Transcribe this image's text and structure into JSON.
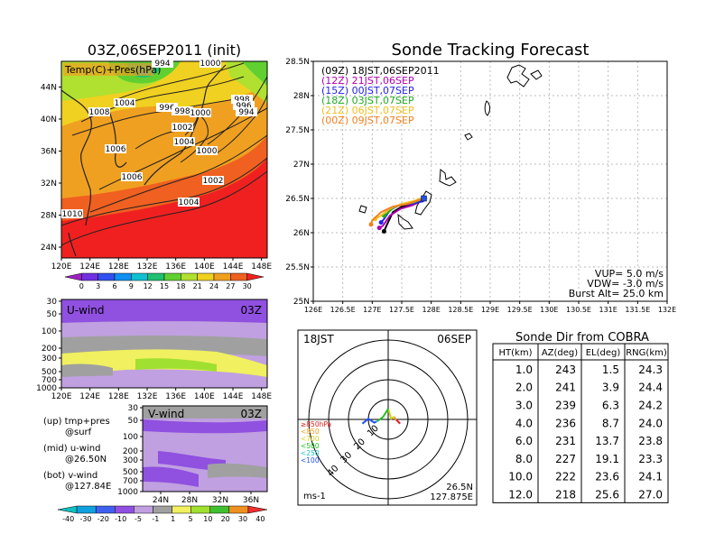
{
  "chart_data": [
    {
      "type": "heatmap",
      "panel": "surface",
      "title": "03Z,06SEP2011 (init)",
      "label": "Temp(C)+Pres(hPa)",
      "xticks": [
        "120E",
        "124E",
        "128E",
        "132E",
        "136E",
        "140E",
        "144E",
        "148E"
      ],
      "yticks": [
        "24N",
        "28N",
        "32N",
        "36N",
        "40N",
        "44N"
      ],
      "pressure_labels": [
        "994",
        "1000",
        "1004",
        "1008",
        "996",
        "998",
        "1000",
        "998",
        "996",
        "994",
        "1002",
        "1004",
        "1000",
        "1006",
        "1006",
        "1002",
        "1004",
        "1010"
      ],
      "colorbar": [
        "0",
        "3",
        "6",
        "9",
        "12",
        "15",
        "18",
        "21",
        "24",
        "27",
        "30"
      ]
    },
    {
      "type": "heatmap",
      "panel": "u-wind",
      "label": "U-wind",
      "time": "03Z",
      "xticks": [
        "120E",
        "124E",
        "128E",
        "132E",
        "136E",
        "140E",
        "144E",
        "148E"
      ],
      "yticks": [
        "30",
        "50",
        "100",
        "200",
        "300",
        "500",
        "700",
        "1000"
      ]
    },
    {
      "type": "heatmap",
      "panel": "v-wind",
      "label": "V-wind",
      "time": "03Z",
      "xticks": [
        "24N",
        "28N",
        "32N",
        "36N"
      ],
      "yticks": [
        "30",
        "50",
        "100",
        "200",
        "300",
        "500",
        "700",
        "1000"
      ],
      "colorbar": [
        "-40",
        "-30",
        "-20",
        "-10",
        "-5",
        "-1",
        "1",
        "5",
        "10",
        "20",
        "30",
        "40"
      ]
    },
    {
      "type": "line",
      "panel": "tracking",
      "title": "Sonde Tracking Forecast",
      "xlim": [
        126,
        132
      ],
      "ylim": [
        25,
        28.5
      ],
      "xticks": [
        "126E",
        "126.5E",
        "127E",
        "127.5E",
        "128E",
        "128.5E",
        "129E",
        "129.5E",
        "130E",
        "130.5E",
        "131E",
        "131.5E",
        "132E"
      ],
      "yticks": [
        "25N",
        "25.5N",
        "26N",
        "26.5N",
        "27N",
        "27.5N",
        "28N",
        "28.5N"
      ],
      "start": [
        127.875,
        26.5
      ],
      "series": [
        {
          "name": "(09Z)  18JST,06SEP2011",
          "color": "#000000",
          "points": [
            [
              127.875,
              26.5
            ],
            [
              127.7,
              26.42
            ],
            [
              127.5,
              26.38
            ],
            [
              127.35,
              26.3
            ],
            [
              127.25,
              26.12
            ],
            [
              127.2,
              26.02
            ]
          ]
        },
        {
          "name": "(12Z)  21JST,06SEP",
          "color": "#b000b0",
          "points": [
            [
              127.875,
              26.48
            ],
            [
              127.68,
              26.4
            ],
            [
              127.48,
              26.35
            ],
            [
              127.3,
              26.25
            ],
            [
              127.18,
              26.1
            ],
            [
              127.12,
              26.07
            ]
          ]
        },
        {
          "name": "(15Z)  00JST,07SEP",
          "color": "#2222ee",
          "points": [
            [
              127.875,
              26.46
            ],
            [
              127.65,
              26.42
            ],
            [
              127.45,
              26.4
            ],
            [
              127.3,
              26.33
            ],
            [
              127.2,
              26.2
            ],
            [
              127.15,
              26.15
            ]
          ]
        },
        {
          "name": "(18Z)  03JST,07SEP",
          "color": "#22aa22",
          "points": [
            [
              127.875,
              26.5
            ],
            [
              127.7,
              26.44
            ],
            [
              127.5,
              26.42
            ],
            [
              127.35,
              26.36
            ],
            [
              127.25,
              26.28
            ],
            [
              127.2,
              26.25
            ]
          ]
        },
        {
          "name": "(21Z)  06JST,07SEP",
          "color": "#f0c020",
          "points": [
            [
              127.875,
              26.52
            ],
            [
              127.7,
              26.46
            ],
            [
              127.5,
              26.42
            ],
            [
              127.3,
              26.35
            ],
            [
              127.15,
              26.25
            ],
            [
              127.05,
              26.2
            ]
          ]
        },
        {
          "name": "(00Z)  09JST,07SEP",
          "color": "#f08020",
          "points": [
            [
              127.875,
              26.5
            ],
            [
              127.6,
              26.42
            ],
            [
              127.35,
              26.38
            ],
            [
              127.15,
              26.3
            ],
            [
              127.0,
              26.18
            ],
            [
              126.98,
              26.12
            ]
          ]
        }
      ],
      "notes": [
        "VUP=  5.0  m/s",
        "VDW= -3.0  m/s",
        "Burst Alt=  25.0  km"
      ]
    },
    {
      "type": "line",
      "panel": "polar",
      "time_label": "18JST",
      "date_label": "06SEP",
      "ring_labels": [
        "10",
        "20",
        "30",
        "40"
      ],
      "unit": "ms-1",
      "location": [
        "26.5N",
        "127.875E"
      ],
      "legend": [
        {
          "label": "≥850hPa",
          "color": "#e02020"
        },
        {
          "label": "<850",
          "color": "#f0a020"
        },
        {
          "label": "<700",
          "color": "#d0d020"
        },
        {
          "label": "<500",
          "color": "#20c020"
        },
        {
          "label": "<250",
          "color": "#20c0c0"
        },
        {
          "label": "<100",
          "color": "#2050f0"
        }
      ],
      "series": [
        {
          "color": "#e02020",
          "points": [
            [
              12,
              3
            ],
            [
              10,
              5
            ],
            [
              8,
              7
            ]
          ]
        },
        {
          "color": "#f0a020",
          "points": [
            [
              8,
              7
            ],
            [
              6,
              10
            ]
          ]
        },
        {
          "color": "#d0d020",
          "points": [
            [
              6,
              10
            ],
            [
              3,
              8
            ],
            [
              0,
              18
            ]
          ]
        },
        {
          "color": "#20c020",
          "points": [
            [
              0,
              18
            ],
            [
              -5,
              10
            ],
            [
              -10,
              6
            ]
          ]
        },
        {
          "color": "#20c0c0",
          "points": [
            [
              -10,
              6
            ],
            [
              -12,
              5
            ]
          ]
        },
        {
          "color": "#2050f0",
          "points": [
            [
              -12,
              5
            ],
            [
              -14,
              4
            ],
            [
              -20,
              8
            ],
            [
              -26,
              3
            ]
          ]
        }
      ]
    },
    {
      "type": "table",
      "panel": "sonde-dir",
      "title": "Sonde Dir from COBRA",
      "columns": [
        "HT(km)",
        "AZ(deg)",
        "EL(deg)",
        "RNG(km)"
      ],
      "rows": [
        [
          "1.0",
          "243",
          "1.5",
          "24.3"
        ],
        [
          "2.0",
          "241",
          "3.9",
          "24.4"
        ],
        [
          "3.0",
          "239",
          "6.3",
          "24.2"
        ],
        [
          "4.0",
          "236",
          "8.7",
          "24.0"
        ],
        [
          "6.0",
          "231",
          "13.7",
          "23.8"
        ],
        [
          "8.0",
          "227",
          "19.1",
          "23.3"
        ],
        [
          "10.0",
          "222",
          "23.6",
          "24.1"
        ],
        [
          "12.0",
          "218",
          "25.6",
          "27.0"
        ]
      ]
    }
  ],
  "side_notes": [
    {
      "line1": "(up) tmp+pres",
      "line2": "@surf"
    },
    {
      "line1": "(mid) u-wind",
      "line2": "@26.50N"
    },
    {
      "line1": "(bot) v-wind",
      "line2": "@127.84E"
    }
  ],
  "colors": {
    "temp": [
      "#a020c0",
      "#7030e0",
      "#3050f0",
      "#1090f0",
      "#10c0d0",
      "#20c070",
      "#60d030",
      "#b0e030",
      "#f0d020",
      "#f0a020",
      "#f06020",
      "#f02020"
    ],
    "wind": [
      "#10c0c0",
      "#10a0e0",
      "#4060f0",
      "#9050e0",
      "#c0a0e0",
      "#a0a0a0",
      "#f0f060",
      "#a0e030",
      "#40c030",
      "#f09020",
      "#f03030"
    ]
  }
}
